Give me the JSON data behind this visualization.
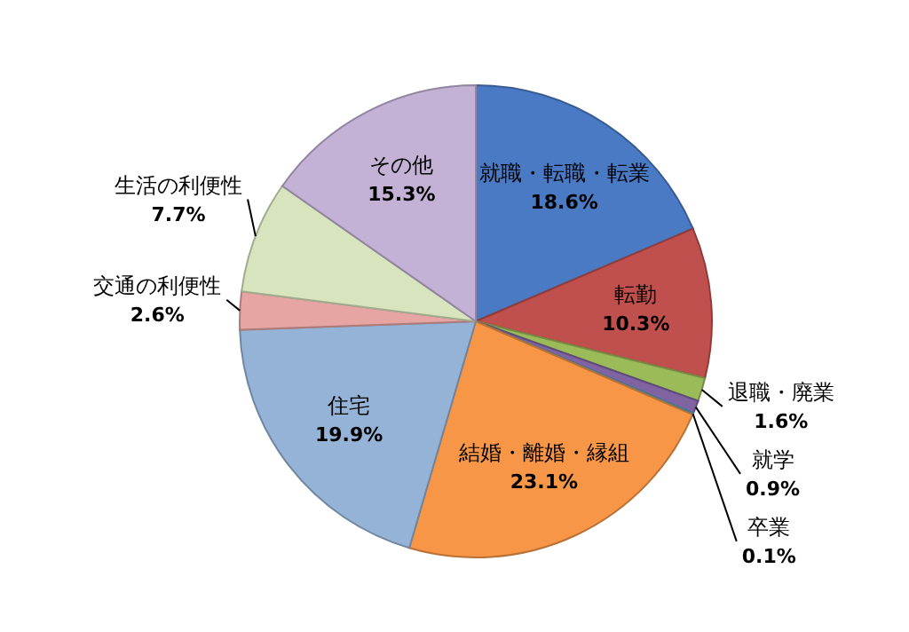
{
  "chart_data": {
    "type": "pie",
    "categories": [
      "就職・転職・転業",
      "転勤",
      "退職・廃業",
      "就学",
      "卒業",
      "結婚・離婚・縁組",
      "住宅",
      "交通の利便性",
      "生活の利便性",
      "その他"
    ],
    "values": [
      18.6,
      10.3,
      1.6,
      0.9,
      0.1,
      23.1,
      19.9,
      2.6,
      7.7,
      15.3
    ],
    "value_labels": [
      "18.6%",
      "10.3%",
      "1.6%",
      "0.9%",
      "0.1%",
      "23.1%",
      "19.9%",
      "2.6%",
      "7.7%",
      "15.3%"
    ],
    "colors": [
      "#4a7ac4",
      "#c0504d",
      "#9bbb59",
      "#8064a2",
      "#4bacc6",
      "#f79646",
      "#95b3d7",
      "#e6a5a3",
      "#d7e4bd",
      "#c3b1d6"
    ]
  }
}
